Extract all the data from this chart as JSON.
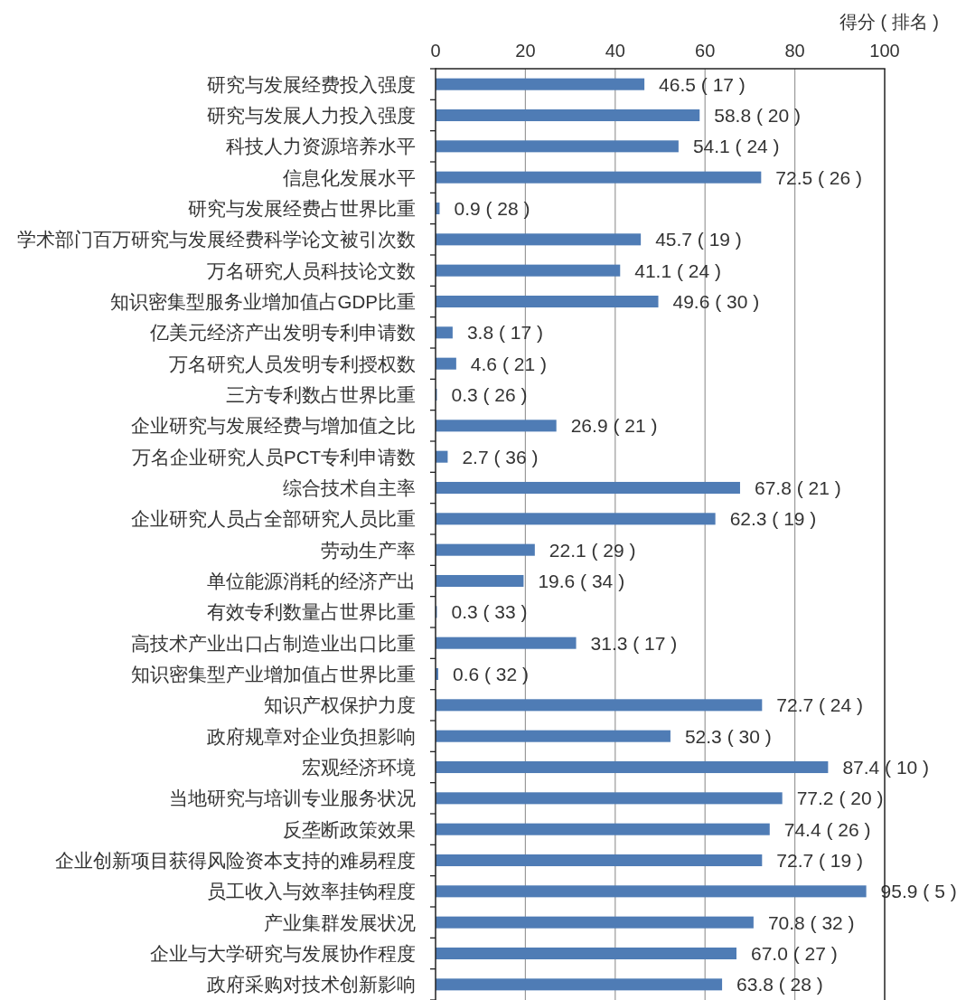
{
  "chart_data": {
    "type": "bar",
    "orientation": "horizontal",
    "xlabel": "得分 ( 排名 )",
    "categories": [
      "研究与发展经费投入强度",
      "研究与发展人力投入强度",
      "科技人力资源培养水平",
      "信息化发展水平",
      "研究与发展经费占世界比重",
      "学术部门百万研究与发展经费科学论文被引次数",
      "万名研究人员科技论文数",
      "知识密集型服务业增加值占GDP比重",
      "亿美元经济产出发明专利申请数",
      "万名研究人员发明专利授权数",
      "三方专利数占世界比重",
      "企业研究与发展经费与增加值之比",
      "万名企业研究人员PCT专利申请数",
      "综合技术自主率",
      "企业研究人员占全部研究人员比重",
      "劳动生产率",
      "单位能源消耗的经济产出",
      "有效专利数量占世界比重",
      "高技术产业出口占制造业出口比重",
      "知识密集型产业增加值占世界比重",
      "知识产权保护力度",
      "政府规章对企业负担影响",
      "宏观经济环境",
      "当地研究与培训专业服务状况",
      "反垄断政策效果",
      "企业创新项目获得风险资本支持的难易程度",
      "员工收入与效率挂钩程度",
      "产业集群发展状况",
      "企业与大学研究与发展协作程度",
      "政府采购对技术创新影响"
    ],
    "values": [
      46.5,
      58.8,
      54.1,
      72.5,
      0.9,
      45.7,
      41.1,
      49.6,
      3.8,
      4.6,
      0.3,
      26.9,
      2.7,
      67.8,
      62.3,
      22.1,
      19.6,
      0.3,
      31.3,
      0.6,
      72.7,
      52.3,
      87.4,
      77.2,
      74.4,
      72.7,
      95.9,
      70.8,
      67.0,
      63.8
    ],
    "value_labels": [
      "46.5 ( 17 )",
      "58.8 ( 20 )",
      "54.1 ( 24 )",
      "72.5 ( 26 )",
      "0.9 ( 28 )",
      "45.7 ( 19 )",
      "41.1 ( 24 )",
      "49.6 ( 30 )",
      "3.8 ( 17 )",
      "4.6 ( 21 )",
      "0.3 ( 26 )",
      "26.9 ( 21 )",
      "2.7 ( 36 )",
      "67.8 ( 21 )",
      "62.3 ( 19 )",
      "22.1 ( 29 )",
      "19.6 ( 34 )",
      "0.3 ( 33 )",
      "31.3 ( 17 )",
      "0.6 ( 32 )",
      "72.7 ( 24 )",
      "52.3 ( 30 )",
      "87.4 ( 10 )",
      "77.2 ( 20 )",
      "74.4 ( 26 )",
      "72.7 ( 19 )",
      "95.9 ( 5 )",
      "70.8 ( 32 )",
      "67.0 ( 27 )",
      "63.8 ( 28 )"
    ],
    "color": "#4f7cb5",
    "xlim": [
      0,
      100
    ],
    "xticks": [
      0,
      20,
      40,
      60,
      80,
      100
    ],
    "grid": "x"
  }
}
